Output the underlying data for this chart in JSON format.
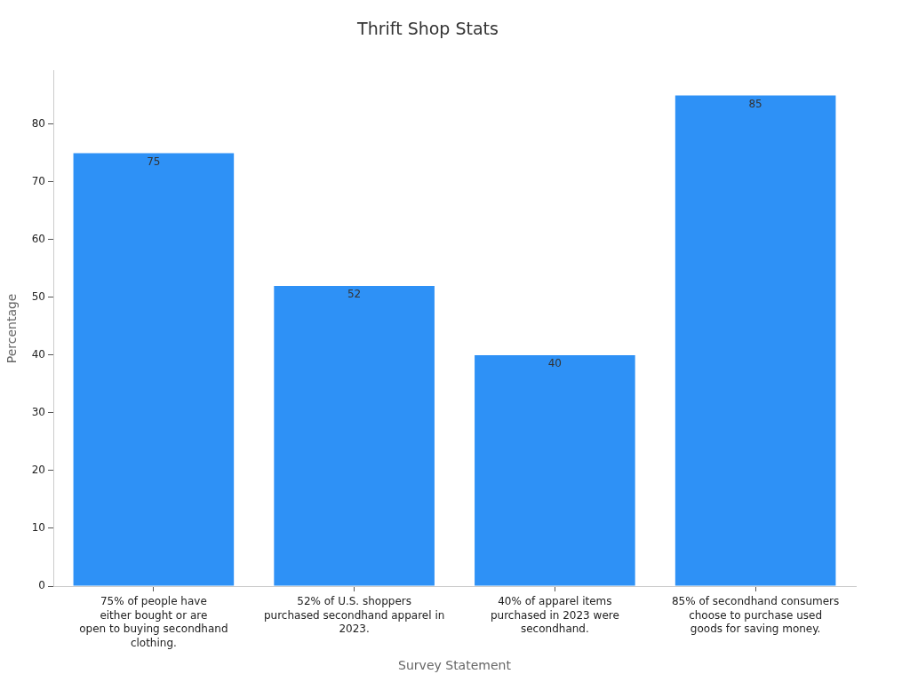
{
  "chart_data": {
    "type": "bar",
    "title": "Thrift Shop Stats",
    "xlabel": "Survey Statement",
    "ylabel": "Percentage",
    "categories": [
      "75% of people have\neither bought or are\nopen to buying secondhand\nclothing.",
      "52% of U.S. shoppers\npurchased secondhand apparel in\n2023.",
      "40% of apparel items\npurchased in 2023 were\nsecondhand.",
      "85% of secondhand consumers\nchoose to purchase used\ngoods for saving money."
    ],
    "values": [
      75,
      52,
      40,
      85
    ],
    "color": "#2e91f6",
    "ylim": [
      0,
      89.25
    ],
    "yticks": [
      0,
      10,
      20,
      30,
      40,
      50,
      60,
      70,
      80
    ],
    "data_labels": true,
    "grid": false,
    "legend": false
  }
}
